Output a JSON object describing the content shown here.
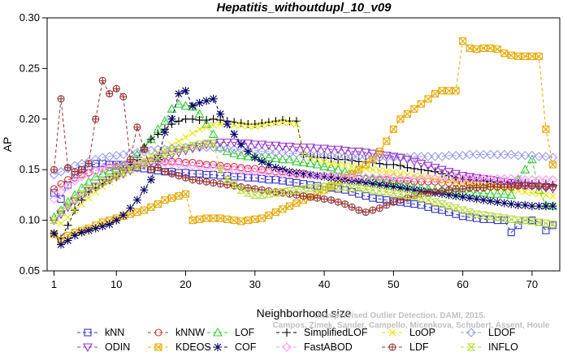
{
  "chart_data": {
    "type": "line",
    "title": "Hepatitis_withoutdupl_10_v09",
    "xlabel": "Neighborhood size",
    "ylabel": "AP",
    "xlim": [
      0,
      74
    ],
    "ylim": [
      0.05,
      0.3
    ],
    "x_ticks": [
      1,
      10,
      20,
      30,
      40,
      50,
      60,
      70
    ],
    "y_ticks": [
      "0.05",
      "0.10",
      "0.15",
      "0.20",
      "0.25",
      "0.30"
    ],
    "watermark": [
      "Campos, Zimek, Sander, Campello, Micenkova, Schubert, Assent, Houle",
      "Unsupervised Outlier Detection. DAMI, 2015."
    ],
    "grid": false,
    "legend_position": "bottom",
    "series": [
      {
        "name": "kNN",
        "color": "#3333cc",
        "marker": "square",
        "start": 1,
        "values": [
          0.127,
          0.121,
          0.135,
          0.145,
          0.15,
          0.153,
          0.156,
          0.156,
          0.155,
          0.155,
          0.155,
          0.154,
          0.152,
          0.151,
          0.15,
          0.149,
          0.148,
          0.148,
          0.147,
          0.147,
          0.146,
          0.146,
          0.145,
          0.145,
          0.144,
          0.144,
          0.143,
          0.143,
          0.142,
          0.142,
          0.141,
          0.14,
          0.14,
          0.139,
          0.138,
          0.137,
          0.136,
          0.135,
          0.134,
          0.133,
          0.132,
          0.131,
          0.13,
          0.128,
          0.126,
          0.124,
          0.122,
          0.121,
          0.12,
          0.119,
          0.118,
          0.117,
          0.116,
          0.115,
          0.113,
          0.111,
          0.11,
          0.108,
          0.106,
          0.104,
          0.103,
          0.102,
          0.101,
          0.101,
          0.1,
          0.1,
          0.088,
          0.095,
          0.1,
          0.1,
          0.098,
          0.09,
          0.095
        ]
      },
      {
        "name": "kNNW",
        "color": "#cc3333",
        "marker": "circle",
        "start": 1,
        "values": [
          0.131,
          0.136,
          0.14,
          0.142,
          0.145,
          0.147,
          0.149,
          0.151,
          0.152,
          0.153,
          0.154,
          0.155,
          0.156,
          0.157,
          0.158,
          0.158,
          0.158,
          0.158,
          0.158,
          0.157,
          0.157,
          0.156,
          0.155,
          0.155,
          0.154,
          0.153,
          0.153,
          0.152,
          0.151,
          0.151,
          0.15,
          0.149,
          0.148,
          0.148,
          0.147,
          0.146,
          0.146,
          0.145,
          0.144,
          0.144,
          0.143,
          0.143,
          0.142,
          0.142,
          0.141,
          0.141,
          0.14,
          0.14,
          0.14,
          0.139,
          0.139,
          0.139,
          0.138,
          0.138,
          0.138,
          0.138,
          0.137,
          0.137,
          0.137,
          0.137,
          0.136,
          0.136,
          0.136,
          0.136,
          0.135,
          0.135,
          0.135,
          0.135,
          0.134,
          0.134,
          0.134,
          0.134,
          0.133
        ]
      },
      {
        "name": "LOF",
        "color": "#33cc33",
        "marker": "triangle",
        "start": 1,
        "values": [
          0.103,
          0.11,
          0.118,
          0.125,
          0.132,
          0.138,
          0.143,
          0.146,
          0.149,
          0.151,
          0.154,
          0.158,
          0.165,
          0.172,
          0.18,
          0.19,
          0.198,
          0.21,
          0.215,
          0.213,
          0.212,
          0.205,
          0.195,
          0.185,
          0.172,
          0.168,
          0.166,
          0.164,
          0.163,
          0.163,
          0.162,
          0.162,
          0.161,
          0.16,
          0.16,
          0.158,
          0.157,
          0.156,
          0.155,
          0.153,
          0.152,
          0.15,
          0.148,
          0.146,
          0.144,
          0.142,
          0.141,
          0.14,
          0.138,
          0.137,
          0.136,
          0.134,
          0.133,
          0.132,
          0.131,
          0.13,
          0.13,
          0.129,
          0.129,
          0.128,
          0.128,
          0.127,
          0.127,
          0.126,
          0.126,
          0.126,
          0.125,
          0.14,
          0.15,
          0.16,
          0.13,
          0.115,
          0.114
        ]
      },
      {
        "name": "SimplifiedLOF",
        "color": "#000000",
        "marker": "plus",
        "start": 1,
        "values": [
          0.087,
          0.082,
          0.095,
          0.11,
          0.12,
          0.128,
          0.132,
          0.136,
          0.14,
          0.143,
          0.15,
          0.155,
          0.16,
          0.172,
          0.18,
          0.185,
          0.19,
          0.195,
          0.198,
          0.2,
          0.2,
          0.199,
          0.199,
          0.2,
          0.199,
          0.198,
          0.197,
          0.196,
          0.195,
          0.195,
          0.196,
          0.197,
          0.198,
          0.199,
          0.198,
          0.198,
          0.165,
          0.163,
          0.162,
          0.162,
          0.161,
          0.16,
          0.16,
          0.159,
          0.158,
          0.158,
          0.157,
          0.156,
          0.155,
          0.155,
          0.154,
          0.152,
          0.151,
          0.15,
          0.149,
          0.148,
          0.146,
          0.144,
          0.142,
          0.141,
          0.14,
          0.139,
          0.139,
          0.138,
          0.138,
          0.138,
          0.137,
          0.137,
          0.137,
          0.136,
          0.136,
          0.136,
          0.135
        ]
      },
      {
        "name": "LoOP",
        "color": "#e6e600",
        "marker": "x",
        "start": 1,
        "values": [
          0.1,
          0.097,
          0.103,
          0.11,
          0.116,
          0.122,
          0.128,
          0.133,
          0.138,
          0.143,
          0.148,
          0.152,
          0.156,
          0.16,
          0.163,
          0.167,
          0.17,
          0.174,
          0.178,
          0.182,
          0.186,
          0.19,
          0.192,
          0.194,
          0.195,
          0.195,
          0.194,
          0.194,
          0.193,
          0.193,
          0.194,
          0.195,
          0.196,
          0.197,
          0.196,
          0.195,
          0.165,
          0.162,
          0.16,
          0.158,
          0.156,
          0.155,
          0.154,
          0.153,
          0.152,
          0.151,
          0.15,
          0.149,
          0.148,
          0.147,
          0.146,
          0.145,
          0.144,
          0.143,
          0.142,
          0.141,
          0.14,
          0.139,
          0.138,
          0.137,
          0.136,
          0.135,
          0.134,
          0.133,
          0.132,
          0.131,
          0.13,
          0.129,
          0.128,
          0.127,
          0.126,
          0.125,
          0.124
        ]
      },
      {
        "name": "LDOF",
        "color": "#9999ee",
        "marker": "diamond",
        "start": 1,
        "values": [
          0.145,
          0.148,
          0.151,
          0.154,
          0.156,
          0.158,
          0.16,
          0.162,
          0.163,
          0.164,
          0.165,
          0.166,
          0.167,
          0.168,
          0.169,
          0.17,
          0.17,
          0.171,
          0.171,
          0.172,
          0.172,
          0.172,
          0.172,
          0.172,
          0.171,
          0.171,
          0.17,
          0.17,
          0.169,
          0.169,
          0.168,
          0.168,
          0.167,
          0.167,
          0.166,
          0.166,
          0.165,
          0.165,
          0.165,
          0.164,
          0.164,
          0.164,
          0.163,
          0.163,
          0.163,
          0.163,
          0.162,
          0.162,
          0.162,
          0.162,
          0.162,
          0.162,
          0.163,
          0.163,
          0.163,
          0.163,
          0.163,
          0.164,
          0.164,
          0.164,
          0.165,
          0.165,
          0.165,
          0.165,
          0.165,
          0.165,
          0.165,
          0.164,
          0.164,
          0.164,
          0.163,
          0.163,
          0.162
        ]
      },
      {
        "name": "ODIN",
        "color": "#9933cc",
        "marker": "triangle-down",
        "start": 1,
        "values": [
          0.1,
          0.106,
          0.113,
          0.119,
          0.124,
          0.129,
          0.133,
          0.137,
          0.14,
          0.143,
          0.146,
          0.149,
          0.152,
          0.155,
          0.158,
          0.161,
          0.163,
          0.165,
          0.167,
          0.169,
          0.171,
          0.173,
          0.175,
          0.176,
          0.177,
          0.177,
          0.177,
          0.176,
          0.176,
          0.175,
          0.175,
          0.174,
          0.174,
          0.173,
          0.173,
          0.172,
          0.172,
          0.172,
          0.171,
          0.171,
          0.17,
          0.17,
          0.169,
          0.168,
          0.168,
          0.167,
          0.166,
          0.165,
          0.164,
          0.163,
          0.162,
          0.16,
          0.158,
          0.156,
          0.154,
          0.152,
          0.15,
          0.148,
          0.146,
          0.144,
          0.143,
          0.142,
          0.141,
          0.14,
          0.139,
          0.138,
          0.137,
          0.136,
          0.135,
          0.134,
          0.133,
          0.132,
          0.131
        ]
      },
      {
        "name": "KDEOS",
        "color": "#e6a800",
        "marker": "square-x",
        "start": 1,
        "values": [
          0.086,
          0.08,
          0.085,
          0.088,
          0.09,
          0.092,
          0.095,
          0.098,
          0.1,
          0.102,
          0.104,
          0.106,
          0.108,
          0.11,
          0.113,
          0.116,
          0.12,
          0.122,
          0.124,
          0.126,
          0.1,
          0.101,
          0.102,
          0.102,
          0.102,
          0.101,
          0.1,
          0.099,
          0.1,
          0.101,
          0.102,
          0.105,
          0.108,
          0.111,
          0.114,
          0.117,
          0.12,
          0.123,
          0.126,
          0.13,
          0.134,
          0.138,
          0.142,
          0.146,
          0.15,
          0.155,
          0.16,
          0.168,
          0.178,
          0.19,
          0.2,
          0.205,
          0.21,
          0.215,
          0.22,
          0.225,
          0.228,
          0.228,
          0.228,
          0.277,
          0.27,
          0.269,
          0.27,
          0.27,
          0.269,
          0.265,
          0.263,
          0.262,
          0.262,
          0.262,
          0.262,
          0.19,
          0.155
        ]
      },
      {
        "name": "COF",
        "color": "#000066",
        "marker": "asterisk",
        "start": 1,
        "values": [
          0.087,
          0.076,
          0.08,
          0.085,
          0.088,
          0.09,
          0.092,
          0.094,
          0.096,
          0.1,
          0.105,
          0.112,
          0.12,
          0.13,
          0.14,
          0.16,
          0.187,
          0.2,
          0.225,
          0.228,
          0.213,
          0.216,
          0.218,
          0.22,
          0.205,
          0.195,
          0.185,
          0.175,
          0.168,
          0.162,
          0.158,
          0.155,
          0.152,
          0.15,
          0.148,
          0.147,
          0.146,
          0.145,
          0.144,
          0.143,
          0.142,
          0.141,
          0.14,
          0.139,
          0.138,
          0.137,
          0.136,
          0.135,
          0.134,
          0.133,
          0.132,
          0.131,
          0.13,
          0.129,
          0.128,
          0.127,
          0.126,
          0.125,
          0.124,
          0.123,
          0.122,
          0.121,
          0.12,
          0.119,
          0.118,
          0.117,
          0.116,
          0.115,
          0.115,
          0.114,
          0.114,
          0.114,
          0.114
        ]
      },
      {
        "name": "FastABOD",
        "color": "#ff99ff",
        "marker": "diamond",
        "start": 1,
        "values": [
          0.121,
          0.128,
          0.134,
          0.139,
          0.143,
          0.146,
          0.149,
          0.151,
          0.153,
          0.154,
          0.155,
          0.156,
          0.157,
          0.157,
          0.157,
          0.157,
          0.157,
          0.156,
          0.156,
          0.155,
          0.154,
          0.154,
          0.153,
          0.152,
          0.152,
          0.151,
          0.15,
          0.15,
          0.149,
          0.148,
          0.148,
          0.147,
          0.147,
          0.146,
          0.146,
          0.145,
          0.145,
          0.145,
          0.144,
          0.144,
          0.144,
          0.143,
          0.143,
          0.143,
          0.143,
          0.142,
          0.142,
          0.142,
          0.142,
          0.142,
          0.141,
          0.141,
          0.141,
          0.141,
          0.141,
          0.141,
          0.141,
          0.141,
          0.141,
          0.141,
          0.141,
          0.141,
          0.141,
          0.141,
          0.141,
          0.141,
          0.141,
          0.141,
          0.14,
          0.14,
          0.14,
          0.14,
          0.14
        ]
      },
      {
        "name": "LDF",
        "color": "#993333",
        "marker": "circle-plus",
        "start": 1,
        "values": [
          0.15,
          0.22,
          0.152,
          0.148,
          0.15,
          0.156,
          0.2,
          0.238,
          0.225,
          0.23,
          0.222,
          0.16,
          0.192,
          0.17,
          0.15,
          0.152,
          0.148,
          0.146,
          0.144,
          0.142,
          0.14,
          0.139,
          0.138,
          0.137,
          0.136,
          0.135,
          0.134,
          0.133,
          0.132,
          0.131,
          0.13,
          0.129,
          0.128,
          0.127,
          0.126,
          0.125,
          0.124,
          0.123,
          0.122,
          0.121,
          0.12,
          0.118,
          0.116,
          0.113,
          0.11,
          0.108,
          0.11,
          0.112,
          0.115,
          0.118,
          0.12,
          0.122,
          0.124,
          0.126,
          0.127,
          0.128,
          0.129,
          0.13,
          0.131,
          0.131,
          0.132,
          0.132,
          0.132,
          0.133,
          0.133,
          0.133,
          0.133,
          0.134,
          0.134,
          0.134,
          0.134,
          0.133,
          0.133
        ]
      },
      {
        "name": "INFLO",
        "color": "#b3d933",
        "marker": "hourglass",
        "start": 1,
        "values": [
          0.1,
          0.108,
          0.115,
          0.121,
          0.126,
          0.13,
          0.134,
          0.138,
          0.141,
          0.144,
          0.147,
          0.15,
          0.153,
          0.156,
          0.159,
          0.162,
          0.165,
          0.168,
          0.17,
          0.172,
          0.174,
          0.175,
          0.176,
          0.176,
          0.15,
          0.14,
          0.135,
          0.13,
          0.127,
          0.125,
          0.125,
          0.126,
          0.127,
          0.128,
          0.129,
          0.13,
          0.131,
          0.132,
          0.132,
          0.133,
          0.133,
          0.133,
          0.133,
          0.132,
          0.132,
          0.131,
          0.13,
          0.129,
          0.128,
          0.127,
          0.126,
          0.125,
          0.124,
          0.122,
          0.12,
          0.118,
          0.116,
          0.114,
          0.112,
          0.11,
          0.108,
          0.106,
          0.105,
          0.104,
          0.103,
          0.102,
          0.101,
          0.1,
          0.1,
          0.099,
          0.098,
          0.097,
          0.096
        ]
      }
    ],
    "legend_order": [
      "kNN",
      "kNNW",
      "LOF",
      "SimplifiedLOF",
      "LoOP",
      "LDOF",
      "ODIN",
      "KDEOS",
      "COF",
      "FastABOD",
      "LDF",
      "INFLO"
    ]
  }
}
